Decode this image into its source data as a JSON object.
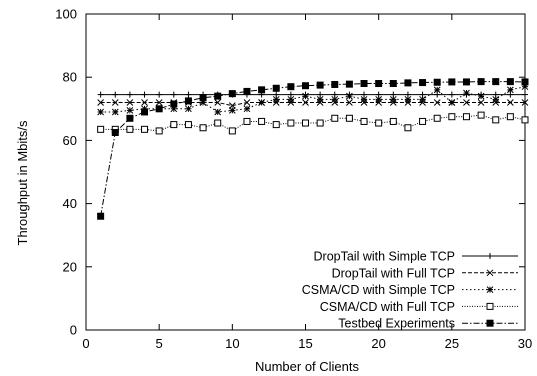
{
  "chart_data": {
    "type": "line",
    "title": "",
    "xlabel": "Number of Clients",
    "ylabel": "Throughput in Mbits/s",
    "xlim": [
      0,
      30
    ],
    "ylim": [
      0,
      100
    ],
    "xticks": [
      "0",
      "5",
      "10",
      "15",
      "20",
      "25",
      "30"
    ],
    "yticks": [
      "0",
      "20",
      "40",
      "60",
      "80",
      "100"
    ],
    "grid": false,
    "legend_position": "bottom-right",
    "series": [
      {
        "name": "DropTail with Simple TCP",
        "marker": "plus",
        "dash": "solid",
        "x": [
          1,
          2,
          3,
          4,
          5,
          6,
          7,
          8,
          9,
          10,
          11,
          12,
          13,
          14,
          15,
          16,
          17,
          18,
          19,
          20,
          21,
          22,
          23,
          24,
          25,
          26,
          27,
          28,
          29,
          30
        ],
        "values": [
          74.5,
          74.5,
          74.5,
          74.5,
          74.5,
          74.5,
          74.5,
          74.5,
          74.5,
          74.5,
          74.5,
          74.5,
          74.5,
          74.5,
          74.5,
          74.5,
          74.5,
          74.5,
          74.5,
          74.5,
          74.5,
          74.5,
          74.5,
          74.5,
          74.5,
          74.5,
          74.5,
          74.5,
          74.5,
          74.5
        ]
      },
      {
        "name": "DropTail with Full TCP",
        "marker": "x",
        "dash": "dashed",
        "x": [
          1,
          2,
          3,
          4,
          5,
          6,
          7,
          8,
          9,
          10,
          11,
          12,
          13,
          14,
          15,
          16,
          17,
          18,
          19,
          20,
          21,
          22,
          23,
          24,
          25,
          26,
          27,
          28,
          29,
          30
        ],
        "values": [
          72,
          72,
          72,
          72,
          72,
          72,
          72,
          72,
          72,
          71,
          72,
          72,
          72,
          72,
          72,
          72,
          72,
          72,
          72,
          72,
          72,
          72,
          72,
          72,
          72,
          72,
          72,
          72,
          72,
          72
        ]
      },
      {
        "name": "CSMA/CD with Simple TCP",
        "marker": "asterisk",
        "dash": "dotted",
        "x": [
          1,
          2,
          3,
          4,
          5,
          6,
          7,
          8,
          9,
          10,
          11,
          12,
          13,
          14,
          15,
          16,
          17,
          18,
          19,
          20,
          21,
          22,
          23,
          24,
          25,
          26,
          27,
          28,
          29,
          30
        ],
        "values": [
          69,
          69,
          69.5,
          70,
          70,
          70,
          70,
          72,
          69,
          69.5,
          70,
          72,
          73,
          73,
          74,
          73,
          73,
          74,
          73,
          73,
          73,
          73,
          73,
          76,
          72,
          75,
          74,
          73,
          76,
          77
        ]
      },
      {
        "name": "CSMA/CD with Full TCP",
        "marker": "square-open",
        "dash": "fine-dotted",
        "x": [
          1,
          2,
          3,
          4,
          5,
          6,
          7,
          8,
          9,
          10,
          11,
          12,
          13,
          14,
          15,
          16,
          17,
          18,
          19,
          20,
          21,
          22,
          23,
          24,
          25,
          26,
          27,
          28,
          29,
          30
        ],
        "values": [
          63.5,
          63.5,
          63.5,
          63.5,
          63,
          65,
          65,
          64,
          65.5,
          63,
          66,
          66,
          65,
          65.5,
          65.5,
          65.5,
          67,
          67,
          66,
          65.5,
          66,
          64,
          66,
          67,
          67.5,
          67.5,
          68,
          66.5,
          67.5,
          66.5
        ]
      },
      {
        "name": "Testbed Experiments",
        "marker": "square-filled",
        "dash": "dash-dot",
        "x": [
          1,
          2,
          3,
          4,
          5,
          6,
          7,
          8,
          9,
          10,
          11,
          12,
          13,
          14,
          15,
          16,
          17,
          18,
          19,
          20,
          21,
          22,
          23,
          24,
          25,
          26,
          27,
          28,
          29,
          30
        ],
        "values": [
          36,
          62.5,
          67,
          69,
          70,
          71.5,
          72.5,
          73.5,
          74,
          74.8,
          75.5,
          76,
          76.5,
          77,
          77.3,
          77.5,
          77.7,
          77.8,
          78,
          78,
          78,
          78.2,
          78.3,
          78.4,
          78.5,
          78.5,
          78.6,
          78.6,
          78.6,
          78.5
        ]
      }
    ]
  }
}
